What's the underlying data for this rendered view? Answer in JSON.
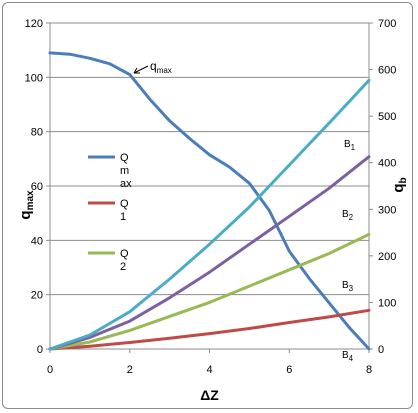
{
  "chart_data": {
    "type": "line",
    "xlabel": "ΔZ",
    "ylabel_left": {
      "main": "q",
      "sub": "max"
    },
    "ylabel_right": {
      "main": "q",
      "sub": "b"
    },
    "xlim": [
      0,
      8
    ],
    "ylim_left": [
      0,
      120
    ],
    "ylim_right": [
      0,
      700
    ],
    "x_ticks": [
      "0",
      "2",
      "4",
      "6",
      "8"
    ],
    "y_ticks_left": [
      "0",
      "20",
      "40",
      "60",
      "80",
      "100",
      "120"
    ],
    "y_ticks_right": [
      "0",
      "100",
      "200",
      "300",
      "400",
      "500",
      "600",
      "700"
    ],
    "grid": "horizontal",
    "series": [
      {
        "name": "Qmax",
        "axis": "left",
        "color": "#4a7ebb",
        "x": [
          0,
          0.5,
          1,
          1.5,
          2,
          2.5,
          3,
          3.5,
          4,
          4.5,
          5,
          5.5,
          6,
          6.5,
          7,
          7.5,
          8
        ],
        "y": [
          109,
          108.5,
          107,
          105,
          101,
          92,
          84,
          77.5,
          71.5,
          67,
          61,
          51,
          36,
          26,
          17,
          8,
          0
        ]
      },
      {
        "name": "Q1",
        "axis": "right",
        "color": "#be4b48",
        "x": [
          0,
          1,
          2,
          3,
          4,
          5,
          6,
          7,
          8
        ],
        "y": [
          0,
          6,
          14,
          23,
          33,
          44,
          57,
          69,
          83
        ]
      },
      {
        "name": "Q2",
        "axis": "right",
        "color": "#98b954",
        "x": [
          0,
          1,
          2,
          3,
          4,
          5,
          6,
          7,
          8
        ],
        "y": [
          0,
          15,
          40,
          70,
          100,
          135,
          170,
          205,
          246
        ]
      },
      {
        "name": "",
        "axis": "right",
        "color": "#7d60a0",
        "x": [
          0,
          1,
          2,
          3,
          4,
          5,
          6,
          7,
          8
        ],
        "y": [
          0,
          25,
          60,
          110,
          165,
          225,
          285,
          345,
          413
        ]
      },
      {
        "name": "",
        "axis": "right",
        "color": "#4bacc6",
        "x": [
          0,
          1,
          2,
          3,
          4,
          5,
          6,
          7,
          8
        ],
        "y": [
          0,
          30,
          80,
          150,
          225,
          305,
          395,
          485,
          577
        ]
      }
    ],
    "annotations": [
      {
        "main": "q",
        "sub": "max"
      },
      {
        "main": "B",
        "sub": "1"
      },
      {
        "main": "B",
        "sub": "2"
      },
      {
        "main": "B",
        "sub": "3"
      },
      {
        "main": "B",
        "sub": "4"
      }
    ],
    "legend": {
      "placement": "left-inside",
      "entries": [
        {
          "lines": [
            "Q",
            "m",
            "ax"
          ],
          "color": "#4a7ebb"
        },
        {
          "lines": [
            "Q",
            "1"
          ],
          "color": "#be4b48"
        },
        {
          "lines": [
            "Q",
            "2"
          ],
          "color": "#98b954"
        }
      ]
    }
  }
}
